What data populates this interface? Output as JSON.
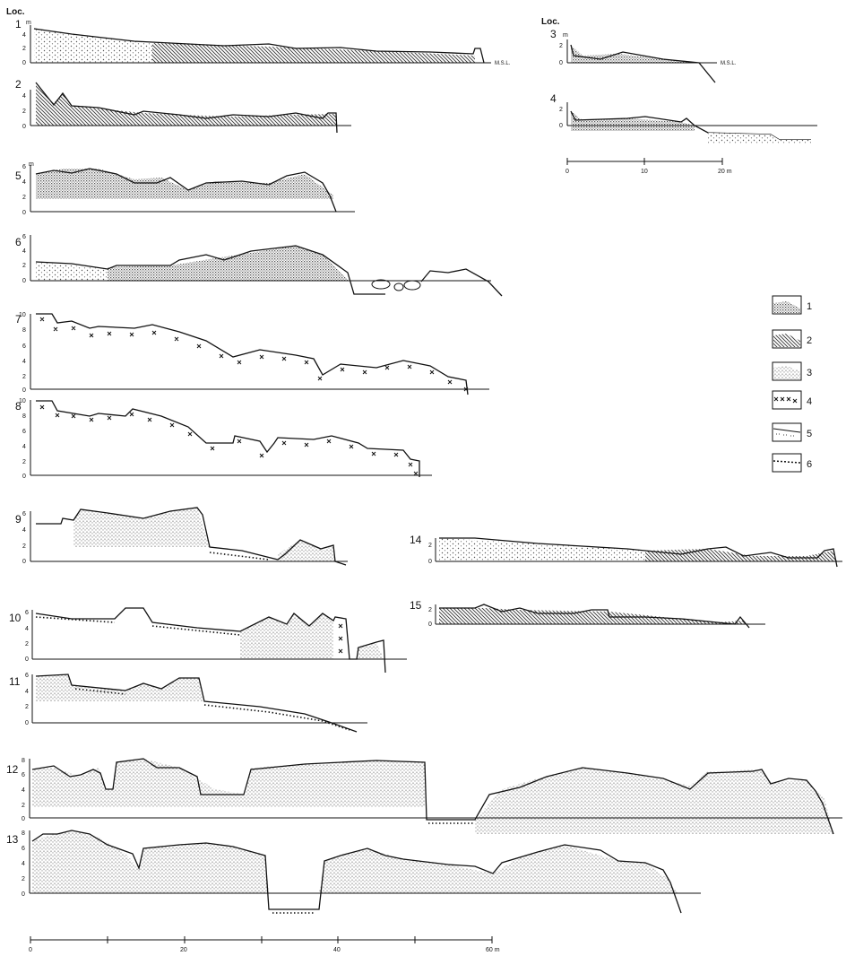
{
  "header": {
    "left": "Loc.",
    "right": "Loc."
  },
  "msl_label": "M.S.L.",
  "profiles": {
    "p1": {
      "label": "1",
      "ticks": [
        "4",
        "2",
        "0"
      ],
      "unit": "m"
    },
    "p2": {
      "label": "2",
      "ticks": [
        "4",
        "2",
        "0"
      ]
    },
    "p3": {
      "label": "3",
      "ticks": [
        "2",
        "0"
      ],
      "unit": "m"
    },
    "p4": {
      "label": "4",
      "ticks": [
        "2",
        "0"
      ]
    },
    "p5": {
      "label": "5",
      "ticks": [
        "6",
        "4",
        "2",
        "0"
      ],
      "unit": "m"
    },
    "p6": {
      "label": "6",
      "ticks": [
        "6",
        "4",
        "2",
        "0"
      ]
    },
    "p7": {
      "label": "7",
      "ticks": [
        "10",
        "8",
        "6",
        "4",
        "2",
        "0"
      ]
    },
    "p8": {
      "label": "8",
      "ticks": [
        "10",
        "8",
        "6",
        "4",
        "2",
        "0"
      ]
    },
    "p9": {
      "label": "9",
      "ticks": [
        "6",
        "4",
        "2",
        "0"
      ]
    },
    "p10": {
      "label": "10",
      "ticks": [
        "6",
        "4",
        "2",
        "0"
      ]
    },
    "p11": {
      "label": "11",
      "ticks": [
        "6",
        "4",
        "2",
        "0"
      ]
    },
    "p12": {
      "label": "12",
      "ticks": [
        "8",
        "6",
        "4",
        "2",
        "0"
      ]
    },
    "p13": {
      "label": "13",
      "ticks": [
        "8",
        "6",
        "4",
        "2",
        "0"
      ]
    },
    "p14": {
      "label": "14",
      "ticks": [
        "2",
        "0"
      ]
    },
    "p15": {
      "label": "15",
      "ticks": [
        "2",
        "0"
      ]
    }
  },
  "scale_small": {
    "labels": [
      "0",
      "10",
      "20 m"
    ]
  },
  "scale_large": {
    "labels": [
      "0",
      "20",
      "40",
      "60 m"
    ]
  },
  "legend": [
    {
      "key": "1",
      "pattern": "dense-stipple"
    },
    {
      "key": "2",
      "pattern": "diagonal-hatch"
    },
    {
      "key": "3",
      "pattern": "light-stipple"
    },
    {
      "key": "4",
      "pattern": "x-marks"
    },
    {
      "key": "5",
      "pattern": "dots"
    },
    {
      "key": "6",
      "pattern": "bold-dots"
    }
  ]
}
